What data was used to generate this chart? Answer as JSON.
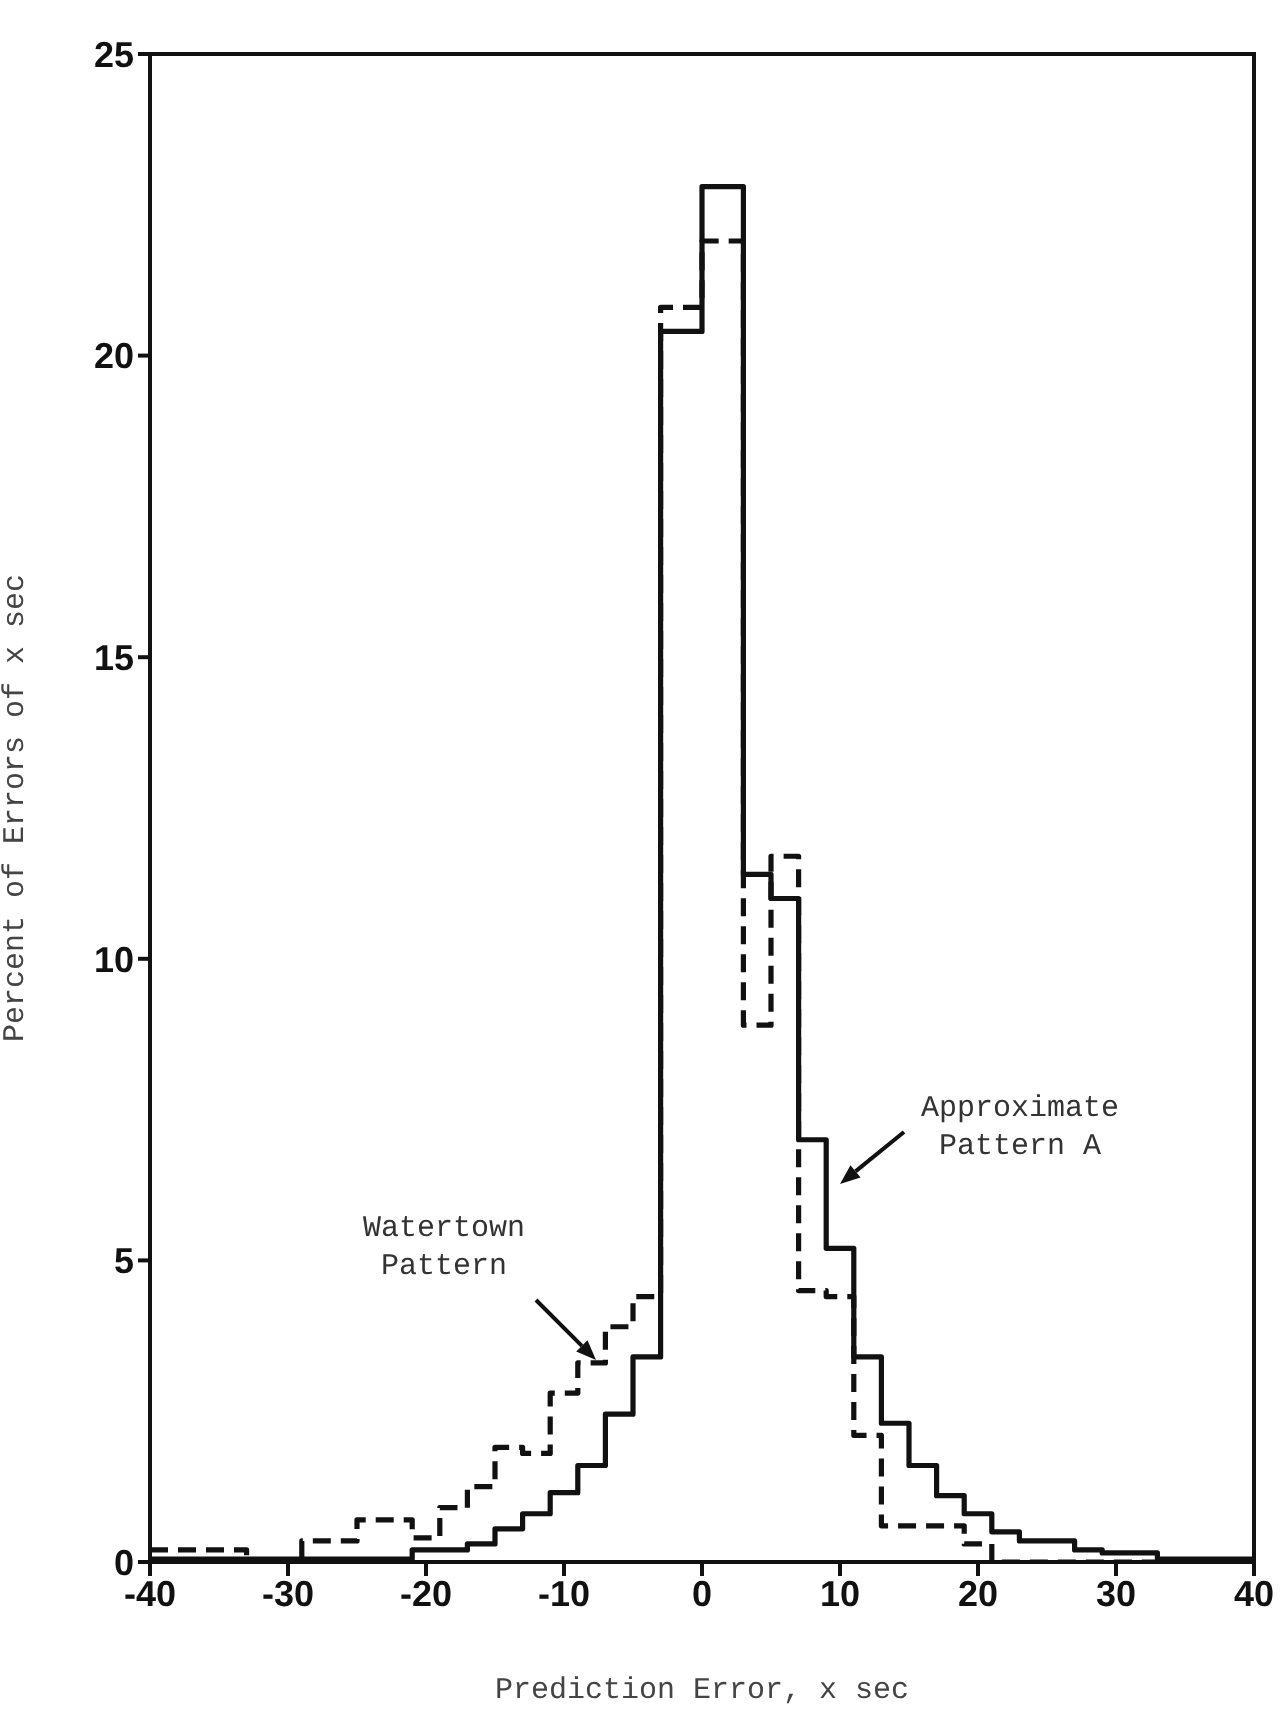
{
  "chart_data": {
    "type": "histogram",
    "xlabel": "Prediction Error, x sec",
    "ylabel": "Percent of Errors of x sec",
    "bins": [
      -40,
      -33,
      -29,
      -25,
      -21,
      -19,
      -17,
      -15,
      -13,
      -11,
      -9,
      -7,
      -5,
      -3,
      0,
      3,
      5,
      7,
      9,
      11,
      13,
      15,
      17,
      19,
      21,
      23,
      27,
      29,
      33,
      40
    ],
    "series": [
      {
        "color": "#111111",
        "line_style": "dashed",
        "values": [
          0.2,
          0,
          0.35,
          0.7,
          0.4,
          0.9,
          1.25,
          1.9,
          1.8,
          2.8,
          3.3,
          3.9,
          4.4,
          20.8,
          21.9,
          8.9,
          11.7,
          4.5,
          4.4,
          2.1,
          0.6,
          0.6,
          0.6,
          0.3,
          0,
          0,
          0,
          0,
          0
        ]
      },
      {
        "color": "#111111",
        "line_style": "solid",
        "values": [
          0.05,
          0.05,
          0.05,
          0.05,
          0.2,
          0.2,
          0.3,
          0.55,
          0.8,
          1.15,
          1.6,
          2.45,
          3.4,
          20.4,
          22.8,
          11.4,
          11.0,
          7.0,
          5.2,
          3.4,
          2.3,
          1.6,
          1.1,
          0.8,
          0.5,
          0.35,
          0.2,
          0.15,
          0.05
        ]
      }
    ],
    "xlim": [
      -40,
      40
    ],
    "xticks": [
      -40,
      -30,
      -20,
      -10,
      0,
      10,
      20,
      30,
      40
    ],
    "ylim": [
      0,
      25
    ],
    "yticks": [
      0,
      5,
      10,
      15,
      20,
      25
    ],
    "annotations": [
      "Watertown Pattern",
      "Approximate Pattern A"
    ],
    "grid": false,
    "legend": false
  }
}
